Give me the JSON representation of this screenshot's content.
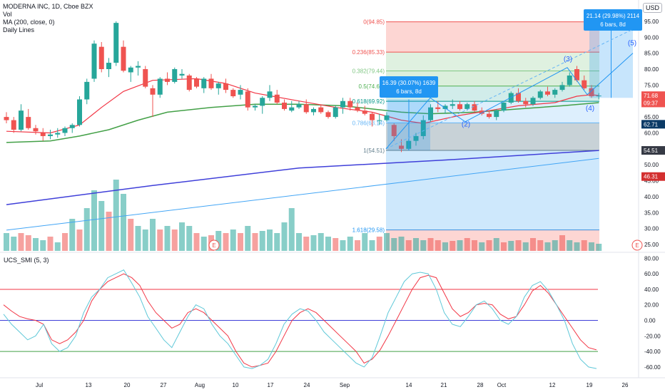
{
  "legend": {
    "symbol": "MODERNA INC, 1D, Cboe BZX",
    "vol": "Vol",
    "ma": "MA (200, close, 0)",
    "daily": "Daily Lines"
  },
  "currency": "USD",
  "colors": {
    "up": "#26a69a",
    "down": "#ef5350",
    "ma_red": "#f23645",
    "ma_green": "#43a047",
    "ma_blue": "#3f3fd9",
    "light_blue": "#42a5f5",
    "info_box": "#2196f3"
  },
  "chart_data": [
    {
      "type": "candlestick",
      "x_ticks": [
        "Jul",
        "13",
        "20",
        "27",
        "Aug",
        "10",
        "17",
        "24",
        "Sep",
        "14",
        "21",
        "28",
        "Oct",
        "12",
        "19",
        "26"
      ],
      "y_ticks": [
        95.0,
        90.0,
        85.0,
        80.0,
        75.0,
        70.0,
        65.0,
        60.0,
        55.0,
        50.0,
        45.0,
        40.0,
        35.0,
        30.0,
        25.0
      ],
      "ylim": [
        23,
        99
      ],
      "price_labels": [
        {
          "text": "71.68",
          "color": "#ef5350",
          "value": 71.68
        },
        {
          "text": "09:37",
          "color": "#ef5350",
          "value": 69.4
        },
        {
          "text": "62.71",
          "color": "#0b3a66",
          "value": 62.71
        },
        {
          "text": "54.51",
          "color": "#363a45",
          "value": 54.51
        },
        {
          "text": "46.31",
          "color": "#d32f2f",
          "value": 46.31
        }
      ],
      "candles": [
        [
          65.0,
          66.5,
          63.0,
          64.0
        ],
        [
          64.0,
          65.0,
          60.0,
          61.0
        ],
        [
          61.0,
          69.0,
          60.5,
          67.0
        ],
        [
          65.0,
          67.5,
          61.0,
          61.5
        ],
        [
          61.5,
          62.5,
          59.5,
          60.5
        ],
        [
          60.0,
          61.5,
          57.5,
          59.0
        ],
        [
          59.0,
          61.0,
          58.0,
          59.5
        ],
        [
          59.5,
          61.5,
          58.5,
          60.0
        ],
        [
          60.0,
          62.0,
          59.0,
          61.5
        ],
        [
          61.5,
          63.0,
          60.0,
          62.5
        ],
        [
          62.5,
          71.5,
          62.0,
          70.5
        ],
        [
          70.5,
          77.0,
          69.0,
          76.0
        ],
        [
          77.0,
          89.0,
          76.0,
          88.0
        ],
        [
          87.0,
          88.5,
          79.0,
          80.0
        ],
        [
          80.0,
          83.5,
          77.5,
          82.0
        ],
        [
          82.0,
          95.0,
          81.0,
          94.5
        ],
        [
          87.0,
          89.0,
          79.0,
          79.5
        ],
        [
          79.0,
          81.0,
          76.0,
          80.5
        ],
        [
          80.5,
          82.5,
          78.0,
          81.0
        ],
        [
          80.0,
          81.0,
          74.0,
          74.5
        ],
        [
          74.0,
          75.0,
          65.0,
          72.0
        ],
        [
          72.0,
          77.5,
          71.0,
          77.0
        ],
        [
          77.0,
          79.0,
          75.0,
          76.0
        ],
        [
          76.0,
          80.5,
          75.5,
          80.0
        ],
        [
          78.0,
          80.0,
          77.0,
          78.5
        ],
        [
          78.0,
          78.5,
          73.0,
          73.5
        ],
        [
          77.0,
          77.5,
          74.0,
          74.5
        ],
        [
          74.0,
          77.5,
          72.5,
          77.0
        ],
        [
          77.0,
          78.5,
          73.5,
          74.0
        ],
        [
          74.0,
          76.0,
          72.0,
          75.5
        ],
        [
          75.5,
          77.0,
          72.5,
          73.5
        ],
        [
          73.5,
          74.0,
          71.0,
          71.5
        ],
        [
          72.0,
          75.0,
          70.5,
          73.5
        ],
        [
          73.0,
          74.0,
          67.0,
          68.0
        ],
        [
          68.0,
          69.0,
          67.0,
          68.5
        ],
        [
          68.5,
          71.5,
          66.0,
          71.0
        ],
        [
          71.0,
          75.0,
          70.0,
          73.0
        ],
        [
          72.0,
          73.5,
          69.0,
          69.5
        ],
        [
          69.5,
          70.5,
          67.0,
          67.5
        ],
        [
          67.0,
          70.0,
          66.5,
          68.0
        ],
        [
          68.0,
          70.0,
          67.5,
          69.0
        ],
        [
          69.0,
          70.5,
          66.0,
          66.5
        ],
        [
          66.5,
          68.0,
          65.5,
          67.5
        ],
        [
          68.0,
          69.0,
          66.0,
          66.5
        ],
        [
          66.5,
          67.0,
          64.5,
          65.0
        ],
        [
          65.0,
          68.5,
          64.5,
          68.0
        ],
        [
          68.0,
          71.0,
          66.0,
          70.0
        ],
        [
          70.0,
          71.0,
          67.0,
          68.0
        ],
        [
          68.0,
          69.5,
          66.5,
          67.0
        ],
        [
          67.0,
          68.5,
          65.5,
          66.0
        ],
        [
          66.0,
          66.5,
          62.0,
          64.0
        ],
        [
          64.0,
          66.0,
          62.5,
          64.0
        ],
        [
          64.0,
          66.5,
          63.5,
          65.5
        ],
        [
          62.5,
          63.0,
          57.5,
          59.0
        ],
        [
          56.0,
          58.0,
          54.0,
          55.0
        ],
        [
          55.0,
          58.0,
          54.5,
          57.5
        ],
        [
          57.5,
          60.0,
          56.0,
          59.0
        ],
        [
          59.0,
          65.5,
          58.0,
          64.0
        ],
        [
          64.0,
          69.0,
          63.5,
          68.0
        ],
        [
          68.0,
          70.0,
          66.5,
          67.5
        ],
        [
          67.5,
          69.0,
          66.0,
          68.5
        ],
        [
          68.5,
          70.5,
          67.5,
          69.0
        ],
        [
          69.0,
          70.0,
          67.0,
          67.5
        ],
        [
          67.5,
          69.5,
          67.0,
          69.0
        ],
        [
          69.0,
          70.0,
          66.5,
          67.0
        ],
        [
          67.0,
          68.0,
          65.5,
          66.0
        ],
        [
          66.0,
          67.0,
          64.5,
          65.0
        ],
        [
          65.0,
          67.5,
          64.0,
          67.0
        ],
        [
          67.0,
          70.0,
          66.5,
          69.5
        ],
        [
          69.5,
          73.0,
          69.0,
          72.5
        ],
        [
          72.5,
          74.0,
          69.5,
          70.0
        ],
        [
          70.0,
          71.0,
          68.0,
          69.0
        ],
        [
          69.0,
          71.5,
          68.5,
          71.0
        ],
        [
          71.0,
          73.5,
          70.5,
          73.0
        ],
        [
          73.0,
          74.5,
          71.5,
          72.0
        ],
        [
          72.0,
          74.0,
          71.0,
          73.5
        ],
        [
          73.5,
          76.0,
          73.0,
          75.0
        ],
        [
          75.0,
          79.0,
          74.5,
          78.0
        ],
        [
          80.0,
          81.0,
          76.0,
          76.5
        ],
        [
          76.5,
          78.0,
          73.5,
          74.0
        ],
        [
          74.0,
          75.0,
          71.0,
          71.5
        ],
        [
          71.5,
          72.5,
          70.5,
          71.7
        ]
      ],
      "ma_red": [
        [
          0,
          60.5
        ],
        [
          6,
          60.0
        ],
        [
          10,
          62.5
        ],
        [
          13,
          68.0
        ],
        [
          16,
          73.0
        ],
        [
          20,
          76.5
        ],
        [
          26,
          77.0
        ],
        [
          30,
          75.5
        ],
        [
          34,
          72.5
        ],
        [
          40,
          70.0
        ],
        [
          45,
          68.0
        ],
        [
          50,
          66.5
        ],
        [
          54,
          64.0
        ],
        [
          57,
          63.0
        ],
        [
          62,
          65.5
        ],
        [
          66,
          67.0
        ],
        [
          70,
          68.5
        ],
        [
          75,
          69.5
        ],
        [
          78,
          71.5
        ],
        [
          80,
          72.0
        ],
        [
          81,
          71.7
        ]
      ],
      "ma_green": [
        [
          0,
          57.0
        ],
        [
          6,
          57.5
        ],
        [
          10,
          59.0
        ],
        [
          14,
          61.0
        ],
        [
          18,
          64.0
        ],
        [
          22,
          66.5
        ],
        [
          28,
          68.0
        ],
        [
          34,
          69.0
        ],
        [
          40,
          69.0
        ],
        [
          46,
          68.5
        ],
        [
          50,
          67.5
        ],
        [
          54,
          66.5
        ],
        [
          58,
          66.0
        ],
        [
          64,
          66.5
        ],
        [
          70,
          67.5
        ],
        [
          76,
          68.5
        ],
        [
          81,
          69.5
        ]
      ],
      "ma200": [
        [
          0,
          37.5
        ],
        [
          20,
          43.5
        ],
        [
          40,
          49.0
        ],
        [
          60,
          51.5
        ],
        [
          81,
          54.5
        ]
      ],
      "trendline": [
        [
          0,
          29.5
        ],
        [
          81,
          52.0
        ]
      ],
      "fib": [
        {
          "label": "0(94.85)",
          "value": 94.85
        },
        {
          "label": "0.236(85.33)",
          "value": 85.33
        },
        {
          "label": "0.382(79.44)",
          "value": 79.44
        },
        {
          "label": "0.5(74.68)",
          "value": 74.68
        },
        {
          "label": "0.618(69.92)",
          "value": 69.92
        },
        {
          "label": "0.786(63.14)",
          "value": 63.14
        },
        {
          "label": "1(54.51)",
          "value": 54.51
        },
        {
          "label": "1.618(29.58)",
          "value": 29.58
        }
      ],
      "waves": [
        {
          "label": "(2)",
          "value": 62.0
        },
        {
          "label": "(3)",
          "value": 82.5
        },
        {
          "label": "(4)",
          "value": 67.0
        },
        {
          "label": "(5)",
          "value": 87.5
        }
      ],
      "measure_boxes": [
        {
          "line1": "16.39 (30.07%) 1639",
          "line2": "6 bars, 8d"
        },
        {
          "line1": "21.14 (29.98%) 2114",
          "line2": "6 bars, 8d"
        }
      ],
      "event_marker": "E",
      "volume": [
        [
          0.25,
          1
        ],
        [
          0.2,
          1
        ],
        [
          0.25,
          0
        ],
        [
          0.22,
          0
        ],
        [
          0.18,
          1
        ],
        [
          0.15,
          1
        ],
        [
          0.2,
          0
        ],
        [
          0.12,
          1
        ],
        [
          0.25,
          0
        ],
        [
          0.45,
          1
        ],
        [
          0.3,
          0
        ],
        [
          0.6,
          1
        ],
        [
          0.85,
          1
        ],
        [
          0.7,
          1
        ],
        [
          0.55,
          0
        ],
        [
          1.0,
          1
        ],
        [
          0.8,
          1
        ],
        [
          0.45,
          0
        ],
        [
          0.35,
          1
        ],
        [
          0.3,
          1
        ],
        [
          0.45,
          1
        ],
        [
          0.3,
          0
        ],
        [
          0.35,
          1
        ],
        [
          0.3,
          0
        ],
        [
          0.4,
          1
        ],
        [
          0.35,
          1
        ],
        [
          0.25,
          0
        ],
        [
          0.2,
          1
        ],
        [
          0.22,
          0
        ],
        [
          0.28,
          1
        ],
        [
          0.25,
          0
        ],
        [
          0.3,
          1
        ],
        [
          0.25,
          0
        ],
        [
          0.35,
          1
        ],
        [
          0.25,
          0
        ],
        [
          0.28,
          1
        ],
        [
          0.3,
          1
        ],
        [
          0.25,
          1
        ],
        [
          0.4,
          1
        ],
        [
          0.6,
          1
        ],
        [
          0.25,
          1
        ],
        [
          0.2,
          0
        ],
        [
          0.22,
          1
        ],
        [
          0.25,
          1
        ],
        [
          0.2,
          1
        ],
        [
          0.18,
          0
        ],
        [
          0.15,
          1
        ],
        [
          0.2,
          1
        ],
        [
          0.15,
          0
        ],
        [
          0.25,
          1
        ],
        [
          0.15,
          1
        ],
        [
          0.2,
          0
        ],
        [
          0.25,
          1
        ],
        [
          0.18,
          1
        ],
        [
          0.2,
          1
        ],
        [
          0.15,
          0
        ],
        [
          0.18,
          1
        ],
        [
          0.15,
          1
        ],
        [
          0.18,
          0
        ],
        [
          0.15,
          0
        ],
        [
          0.12,
          1
        ],
        [
          0.14,
          0
        ],
        [
          0.15,
          1
        ],
        [
          0.18,
          0
        ],
        [
          0.15,
          0
        ],
        [
          0.12,
          1
        ],
        [
          0.15,
          0
        ],
        [
          0.18,
          1
        ],
        [
          0.12,
          0
        ],
        [
          0.14,
          1
        ],
        [
          0.15,
          0
        ],
        [
          0.12,
          1
        ],
        [
          0.18,
          0
        ],
        [
          0.15,
          0
        ],
        [
          0.12,
          1
        ],
        [
          0.15,
          1
        ],
        [
          0.22,
          0
        ],
        [
          0.15,
          1
        ],
        [
          0.12,
          1
        ],
        [
          0.15,
          0
        ],
        [
          0.12,
          1
        ],
        [
          0.1,
          1
        ]
      ]
    },
    {
      "type": "line",
      "title": "UCS_SMI (5, 3)",
      "y_ticks": [
        80.0,
        60.0,
        40.0,
        20.0,
        0.0,
        -20.0,
        -40.0,
        -60.0
      ],
      "ylim": [
        -72,
        84
      ],
      "levels": [
        40,
        0,
        -40
      ],
      "series": [
        {
          "color": "#f23645",
          "values": [
            20,
            12,
            5,
            2,
            0,
            -5,
            -25,
            -30,
            -25,
            -15,
            0,
            25,
            40,
            50,
            55,
            60,
            55,
            45,
            25,
            10,
            0,
            -10,
            -5,
            10,
            15,
            10,
            0,
            -10,
            -20,
            -40,
            -55,
            -60,
            -58,
            -55,
            -40,
            -20,
            0,
            10,
            15,
            10,
            0,
            -10,
            -20,
            -30,
            -40,
            -55,
            -50,
            -38,
            -20,
            0,
            20,
            40,
            55,
            58,
            55,
            35,
            15,
            5,
            10,
            20,
            22,
            20,
            8,
            2,
            5,
            20,
            38,
            45,
            35,
            20,
            5,
            -10,
            -25,
            -35,
            -38
          ]
        },
        {
          "color": "#5fc8d8",
          "values": [
            8,
            -5,
            -15,
            -25,
            -20,
            -5,
            -30,
            -40,
            -35,
            -20,
            10,
            30,
            40,
            55,
            60,
            65,
            48,
            30,
            5,
            -10,
            -25,
            -35,
            -15,
            5,
            20,
            15,
            -5,
            -20,
            -30,
            -45,
            -60,
            -62,
            -58,
            -50,
            -30,
            -5,
            8,
            15,
            12,
            0,
            -15,
            -25,
            -35,
            -45,
            -55,
            -60,
            -48,
            -20,
            10,
            30,
            50,
            60,
            62,
            60,
            40,
            10,
            -5,
            -8,
            5,
            20,
            25,
            15,
            0,
            -5,
            5,
            30,
            45,
            50,
            38,
            20,
            0,
            -30,
            -50,
            -60,
            -62
          ]
        }
      ]
    }
  ],
  "x_ticks_display": [
    "Jul",
    "13",
    "20",
    "27",
    "Aug",
    "10",
    "17",
    "24",
    "Sep",
    "14",
    "21",
    "28",
    "Oct",
    "12",
    "19",
    "26"
  ],
  "vol_y_ticks": [
    95.0,
    90.0,
    85.0,
    80.0,
    75.0,
    70.0,
    65.0,
    60.0,
    55.0,
    50.0,
    45.0,
    40.0,
    35.0,
    30.0,
    25.0
  ],
  "indicator_label": "UCS_SMI (5, 3)"
}
